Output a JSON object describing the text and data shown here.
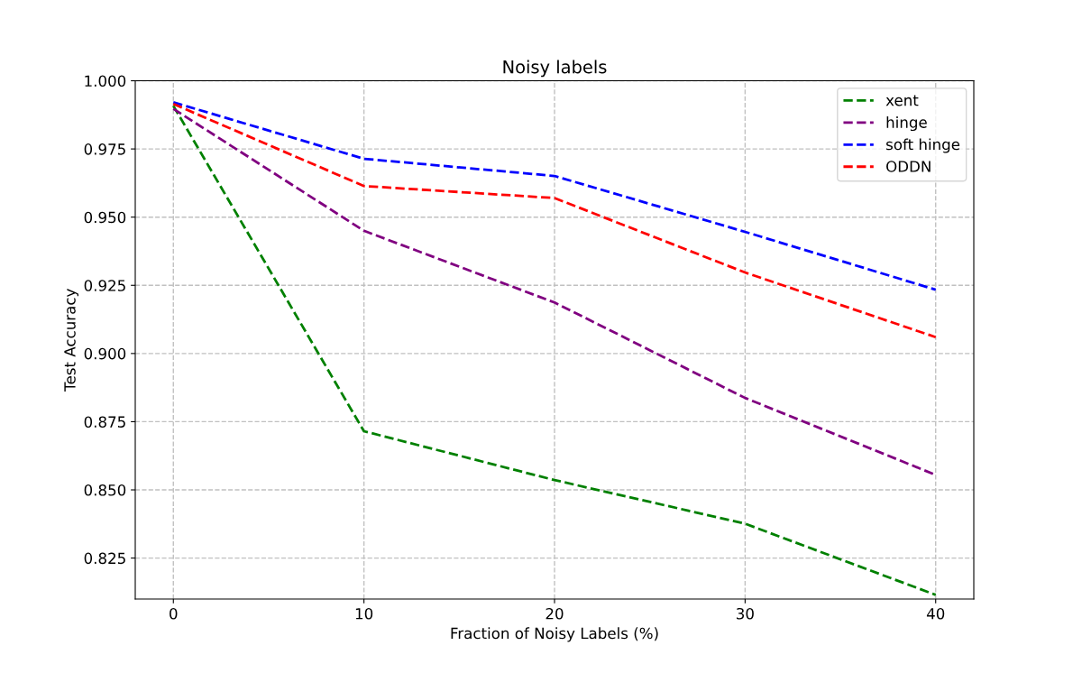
{
  "chart_data": {
    "type": "line",
    "title": "Noisy labels",
    "xlabel": "Fraction of Noisy Labels (%)",
    "ylabel": "Test Accuracy",
    "x": [
      0,
      10,
      20,
      30,
      40
    ],
    "series": [
      {
        "name": "xent",
        "color": "#008000",
        "values": [
          0.9908,
          0.8715,
          0.8536,
          0.8376,
          0.8115
        ]
      },
      {
        "name": "hinge",
        "color": "#800080",
        "values": [
          0.9897,
          0.945,
          0.9187,
          0.8837,
          0.8555
        ]
      },
      {
        "name": "soft hinge",
        "color": "#0000ff",
        "values": [
          0.9921,
          0.9714,
          0.9651,
          0.9446,
          0.9234
        ]
      },
      {
        "name": "ODDN",
        "color": "#ff0000",
        "values": [
          0.9915,
          0.9614,
          0.957,
          0.9297,
          0.906
        ]
      }
    ],
    "xlim": [
      -2,
      42
    ],
    "ylim": [
      0.81,
      1.0
    ],
    "xticks": [
      0,
      10,
      20,
      30,
      40
    ],
    "yticks": [
      {
        "value": 0.825,
        "label": "0.825"
      },
      {
        "value": 0.85,
        "label": "0.850"
      },
      {
        "value": 0.875,
        "label": "0.875"
      },
      {
        "value": 0.9,
        "label": "0.900"
      },
      {
        "value": 0.925,
        "label": "0.925"
      },
      {
        "value": 0.95,
        "label": "0.950"
      },
      {
        "value": 0.975,
        "label": "0.975"
      },
      {
        "value": 1.0,
        "label": "1.000"
      }
    ],
    "grid": true,
    "legend": "top right",
    "line_style": "dashed",
    "marker": "none"
  }
}
